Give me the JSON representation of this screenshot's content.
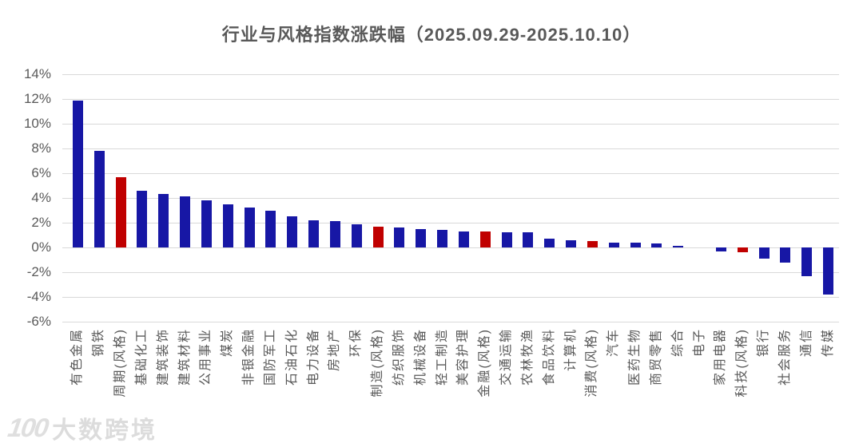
{
  "title": "行业与风格指数涨跌幅（2025.09.29-2025.10.10）",
  "watermark": {
    "logo": "100",
    "text": "大数跨境"
  },
  "colors": {
    "bar_blue": "#1717a5",
    "bar_red": "#c00000",
    "grid": "#d9d9d9",
    "axis_text": "#595959",
    "title_text": "#595959"
  },
  "chart_data": {
    "type": "bar",
    "title": "行业与风格指数涨跌幅（2025.09.29-2025.10.10）",
    "xlabel": "",
    "ylabel": "",
    "ylim": [
      -6,
      14
    ],
    "y_tick_step": 2,
    "y_ticks": [
      "14%",
      "12%",
      "10%",
      "8%",
      "6%",
      "4%",
      "2%",
      "0%",
      "-2%",
      "-4%",
      "-6%"
    ],
    "grid": true,
    "legend": false,
    "note": "red bars mark style indices (风格), blue bars mark industry indices; values in percent",
    "categories": [
      "有色金属",
      "钢铁",
      "周期(风格)",
      "基础化工",
      "建筑装饰",
      "建筑材料",
      "公用事业",
      "煤炭",
      "非银金融",
      "国防军工",
      "石油石化",
      "电力设备",
      "房地产",
      "环保",
      "制造(风格)",
      "纺织服饰",
      "机械设备",
      "轻工制造",
      "美容护理",
      "金融(风格)",
      "交通运输",
      "农林牧渔",
      "食品饮料",
      "计算机",
      "消费(风格)",
      "汽车",
      "医药生物",
      "商贸零售",
      "综合",
      "电子",
      "家用电器",
      "科技(风格)",
      "银行",
      "社会服务",
      "通信",
      "传媒"
    ],
    "values": [
      11.9,
      7.8,
      5.7,
      4.6,
      4.3,
      4.1,
      3.8,
      3.5,
      3.2,
      3.0,
      2.5,
      2.2,
      2.1,
      1.9,
      1.7,
      1.6,
      1.5,
      1.4,
      1.3,
      1.3,
      1.2,
      1.2,
      0.7,
      0.6,
      0.5,
      0.4,
      0.4,
      0.3,
      0.1,
      0.0,
      -0.3,
      -0.4,
      -0.9,
      -1.2,
      -2.3,
      -3.8
    ],
    "bar_colors": [
      "blue",
      "blue",
      "red",
      "blue",
      "blue",
      "blue",
      "blue",
      "blue",
      "blue",
      "blue",
      "blue",
      "blue",
      "blue",
      "blue",
      "red",
      "blue",
      "blue",
      "blue",
      "blue",
      "red",
      "blue",
      "blue",
      "blue",
      "blue",
      "red",
      "blue",
      "blue",
      "blue",
      "blue",
      "blue",
      "blue",
      "red",
      "blue",
      "blue",
      "blue",
      "blue"
    ]
  }
}
